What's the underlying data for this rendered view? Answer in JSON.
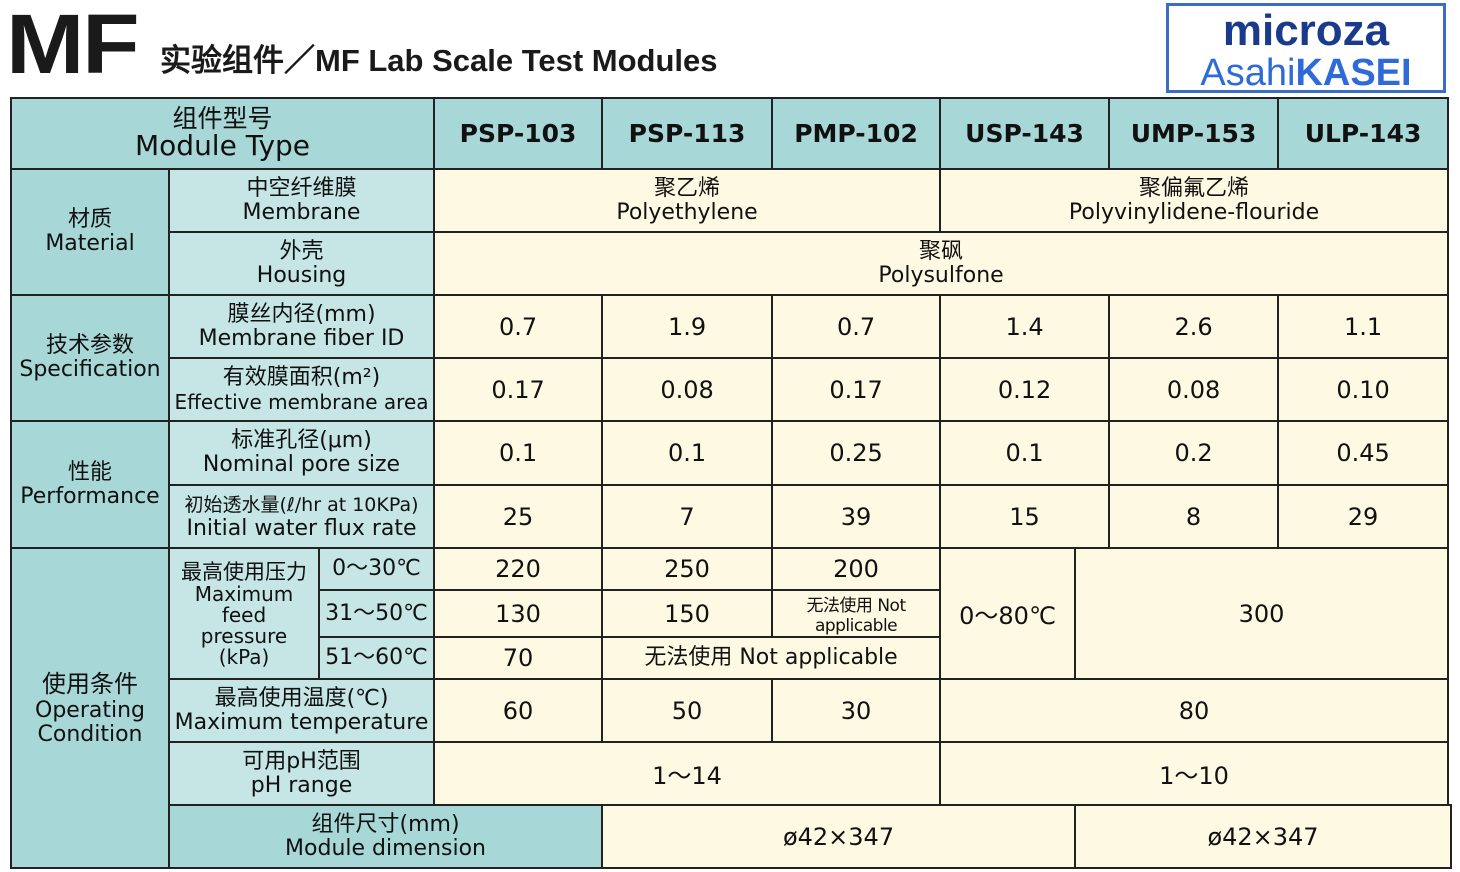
{
  "header": {
    "logo_mark": "MF",
    "title": "实验组件／MF Lab Scale Test Modules",
    "brand_top": "microza",
    "brand_asahi": "Asahi",
    "brand_kasei": "KASEI"
  },
  "table": {
    "module_type_cn": "组件型号",
    "module_type_en": "Module Type",
    "models": [
      "PSP-103",
      "PSP-113",
      "PMP-102",
      "USP-143",
      "UMP-153",
      "ULP-143"
    ],
    "material": {
      "cn": "材质",
      "en": "Material",
      "membrane_cn": "中空纤维膜",
      "membrane_en": "Membrane",
      "membrane_pe_cn": "聚乙烯",
      "membrane_pe_en": "Polyethylene",
      "membrane_pvdf_cn": "聚偏氟乙烯",
      "membrane_pvdf_en": "Polyvinylidene-flouride",
      "housing_cn": "外壳",
      "housing_en": "Housing",
      "housing_val_cn": "聚砜",
      "housing_val_en": "Polysulfone"
    },
    "spec": {
      "cn": "技术参数",
      "en": "Specification",
      "fiber_id_cn": "膜丝内径(mm)",
      "fiber_id_en": "Membrane fiber ID",
      "fiber_id": [
        "0.7",
        "1.9",
        "0.7",
        "1.4",
        "2.6",
        "1.1"
      ],
      "area_cn": "有效膜面积(m²)",
      "area_en": "Effective membrane area",
      "area": [
        "0.17",
        "0.08",
        "0.17",
        "0.12",
        "0.08",
        "0.10"
      ]
    },
    "perf": {
      "cn": "性能",
      "en": "Performance",
      "pore_cn": "标准孔径(μm)",
      "pore_en": "Nominal pore size",
      "pore": [
        "0.1",
        "0.1",
        "0.25",
        "0.1",
        "0.2",
        "0.45"
      ],
      "flux_cn": "初始透水量(ℓ/hr at 10KPa)",
      "flux_en": "Initial water flux rate",
      "flux": [
        "25",
        "7",
        "39",
        "15",
        "8",
        "29"
      ]
    },
    "oper": {
      "cn": "使用条件",
      "en1": "Operating",
      "en2": "Condition",
      "pressure_cn": "最高使用压力",
      "pressure_en1": "Maximum",
      "pressure_en2": "feed",
      "pressure_en3": "pressure",
      "pressure_en4": "(kPa)",
      "range1": "0～30℃",
      "range2": "31～50℃",
      "range3": "51～60℃",
      "p1": [
        "220",
        "250",
        "200"
      ],
      "p2": [
        "130",
        "150"
      ],
      "p2_na": "无法使用 Not applicable",
      "p3": "70",
      "p3_na": "无法使用 Not applicable",
      "usp_range": "0～80℃",
      "usp_val": "300",
      "temp_cn": "最高使用温度(℃)",
      "temp_en": "Maximum temperature",
      "temp": [
        "60",
        "50",
        "30",
        "80"
      ],
      "ph_cn": "可用pH范围",
      "ph_en": "pH range",
      "ph": [
        "1～14",
        "1～10"
      ]
    },
    "dim": {
      "cn": "组件尺寸(mm)",
      "en": "Module dimension",
      "vals": [
        "ø42×347",
        "ø42×347"
      ]
    }
  }
}
